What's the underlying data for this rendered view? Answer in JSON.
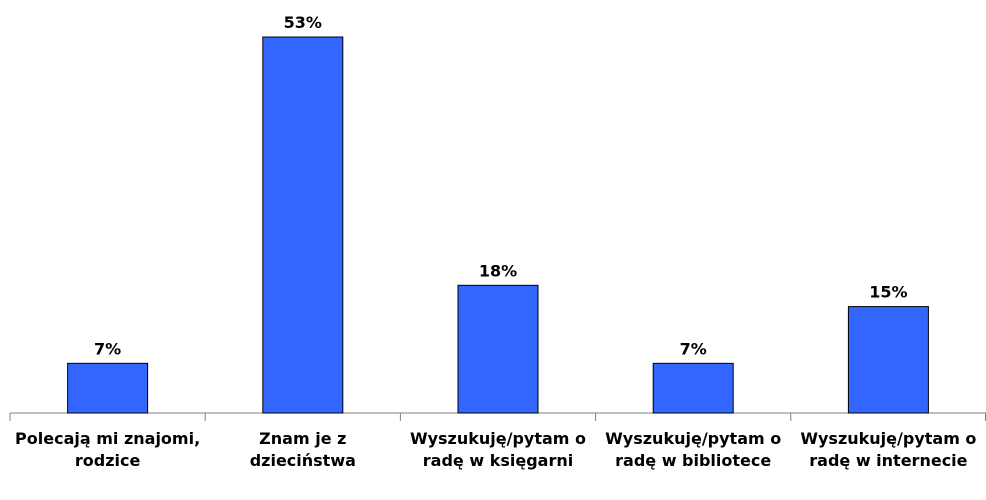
{
  "chart_data": {
    "type": "bar",
    "categories": [
      "Polecają mi znajomi, rodzice",
      "Znam je z dzieciństwa",
      "Wyszukuję/pytam o radę w księgarni",
      "Wyszukuję/pytam o radę w bibliotece",
      "Wyszukuję/pytam o radę w internecie"
    ],
    "values": [
      7,
      53,
      18,
      7,
      15
    ],
    "value_labels": [
      "7%",
      "53%",
      "18%",
      "7%",
      "15%"
    ],
    "color": "#3366ff"
  }
}
